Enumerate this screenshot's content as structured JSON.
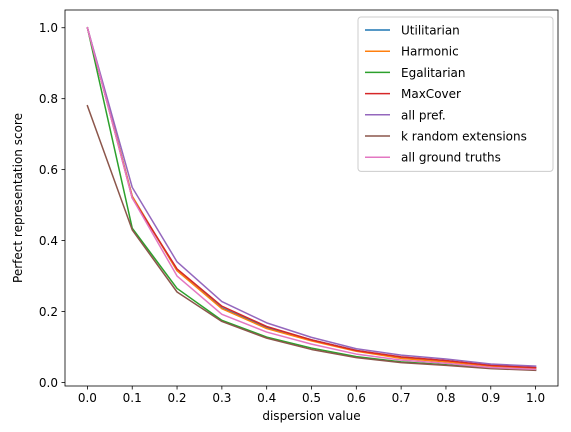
{
  "chart_data": {
    "type": "line",
    "title": "",
    "xlabel": "dispersion value",
    "ylabel": "Perfect representation score",
    "x": [
      0.0,
      0.1,
      0.2,
      0.3,
      0.4,
      0.5,
      0.6,
      0.7,
      0.8,
      0.9,
      1.0
    ],
    "xlim": [
      -0.05,
      1.05
    ],
    "ylim": [
      -0.01,
      1.05
    ],
    "xticks": [
      "0.0",
      "0.1",
      "0.2",
      "0.3",
      "0.4",
      "0.5",
      "0.6",
      "0.7",
      "0.8",
      "0.9",
      "1.0"
    ],
    "yticks": [
      "0.0",
      "0.2",
      "0.4",
      "0.6",
      "0.8",
      "1.0"
    ],
    "grid": false,
    "legend_position": "top-right",
    "series": [
      {
        "name": "Utilitarian",
        "color": "#1f77b4",
        "values": [
          1.0,
          0.525,
          0.315,
          0.21,
          0.155,
          0.12,
          0.09,
          0.07,
          0.06,
          0.048,
          0.042
        ]
      },
      {
        "name": "Harmonic",
        "color": "#ff7f0e",
        "values": [
          1.0,
          0.525,
          0.315,
          0.208,
          0.152,
          0.117,
          0.088,
          0.068,
          0.058,
          0.046,
          0.04
        ]
      },
      {
        "name": "Egalitarian",
        "color": "#2ca02c",
        "values": [
          1.0,
          0.435,
          0.265,
          0.175,
          0.128,
          0.097,
          0.073,
          0.058,
          0.05,
          0.04,
          0.036
        ]
      },
      {
        "name": "MaxCover",
        "color": "#d62728",
        "values": [
          1.0,
          0.52,
          0.32,
          0.215,
          0.158,
          0.12,
          0.09,
          0.072,
          0.062,
          0.048,
          0.042
        ]
      },
      {
        "name": "all pref.",
        "color": "#9467bd",
        "values": [
          1.0,
          0.55,
          0.34,
          0.228,
          0.168,
          0.127,
          0.095,
          0.077,
          0.066,
          0.052,
          0.046
        ]
      },
      {
        "name": "k random extensions",
        "color": "#8c564b",
        "values": [
          0.78,
          0.43,
          0.255,
          0.172,
          0.125,
          0.093,
          0.07,
          0.056,
          0.048,
          0.039,
          0.034
        ]
      },
      {
        "name": "all ground truths",
        "color": "#e377c2",
        "values": [
          1.0,
          0.52,
          0.3,
          0.192,
          0.142,
          0.108,
          0.08,
          0.063,
          0.054,
          0.042,
          0.037
        ]
      }
    ]
  }
}
